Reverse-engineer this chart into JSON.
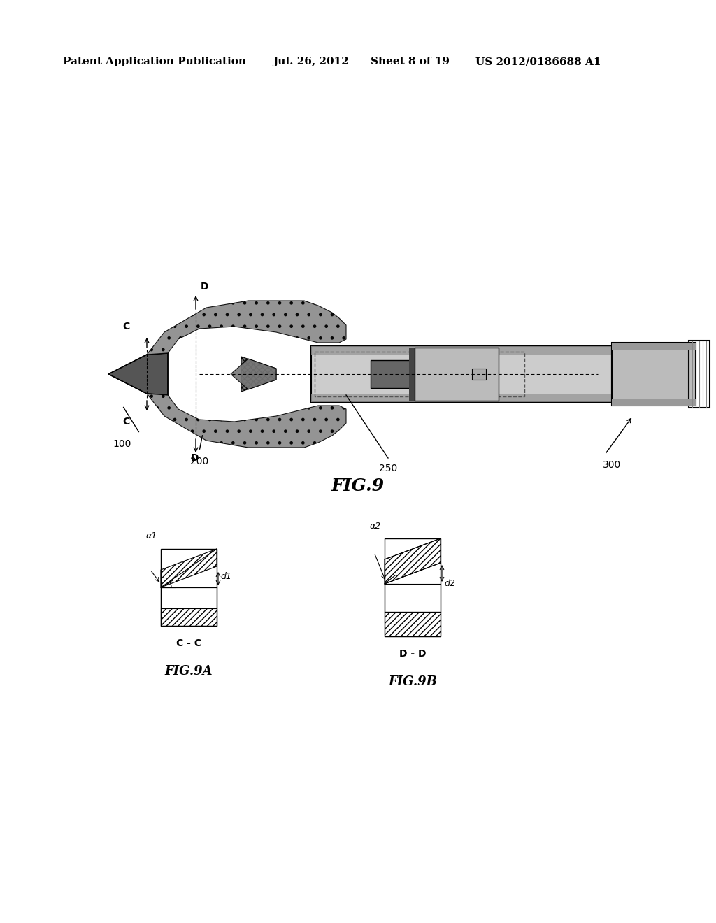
{
  "bg_color": "#ffffff",
  "header_text": "Patent Application Publication",
  "header_date": "Jul. 26, 2012",
  "header_sheet": "Sheet 8 of 19",
  "header_patent": "US 2012/0186688 A1",
  "fig_label": "FIG.9",
  "fig9a_label": "FIG.9A",
  "fig9b_label": "FIG.9B",
  "fig9a_section": "C - C",
  "fig9b_section": "D - D",
  "ref_100": "100",
  "ref_200": "200",
  "ref_250": "250",
  "ref_300": "300",
  "ref_C": "C",
  "ref_D": "D",
  "ref_a1": "α1",
  "ref_d1": "d1",
  "ref_a2": "α2",
  "ref_d2": "d2"
}
